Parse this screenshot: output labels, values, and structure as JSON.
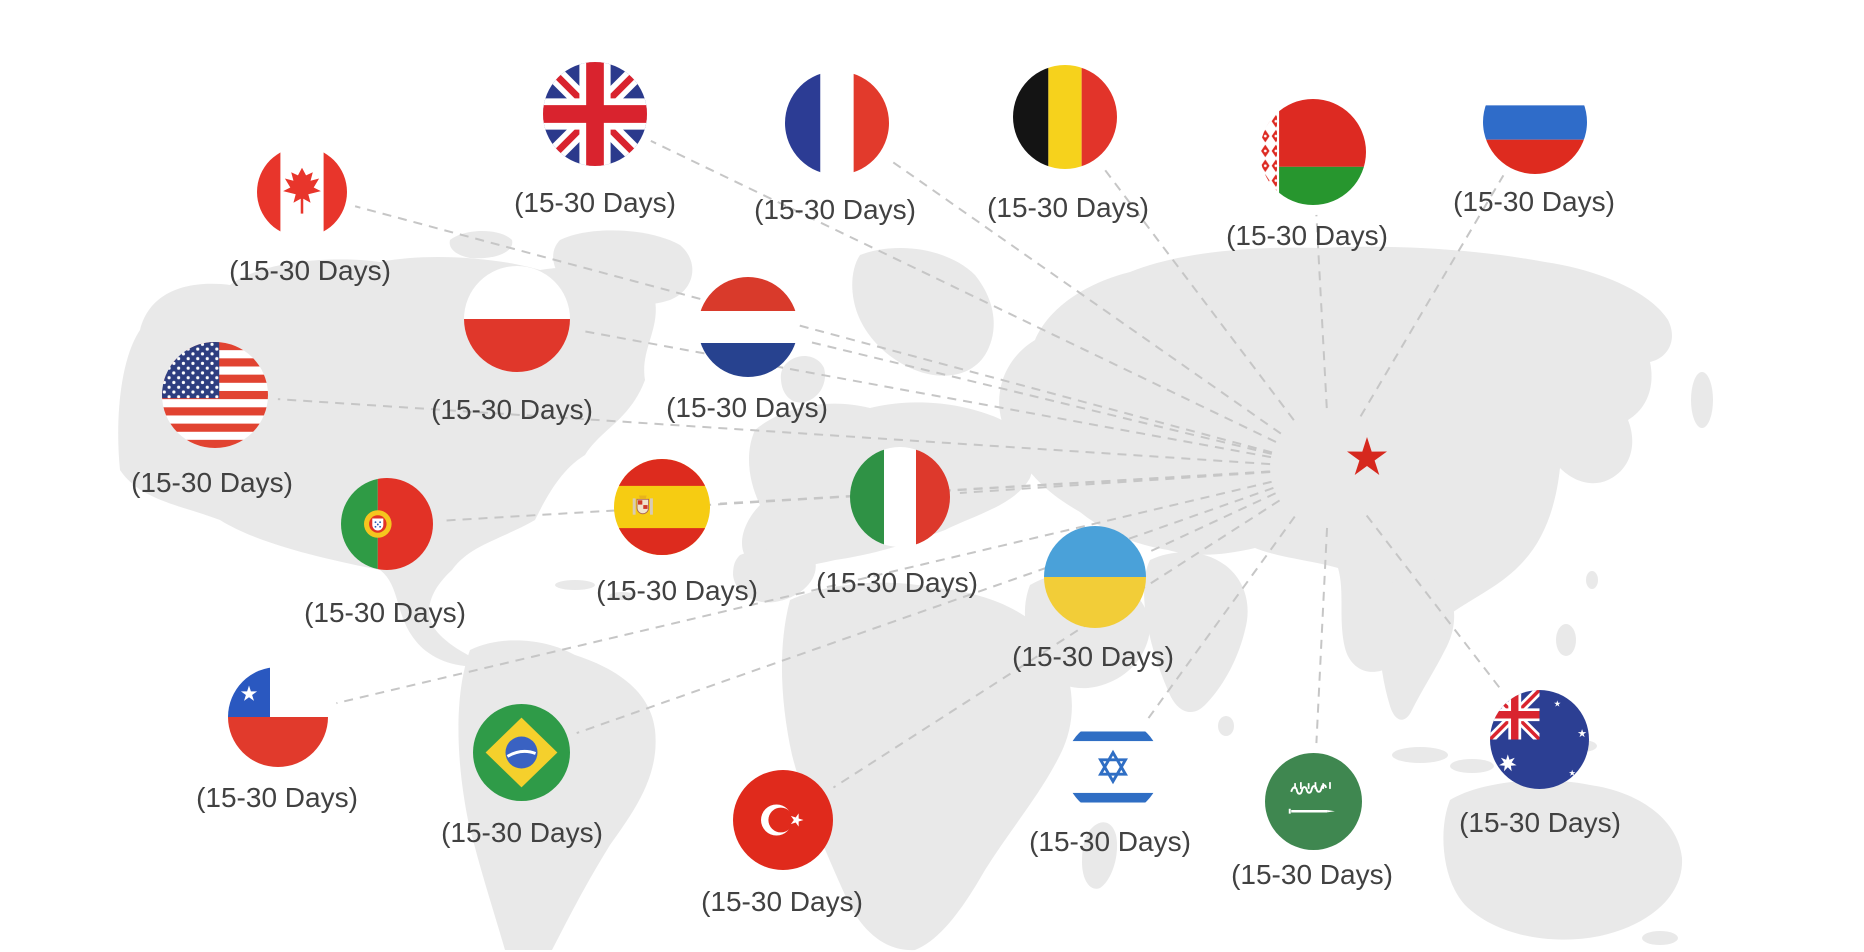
{
  "graphic": {
    "type": "global-shipping-destinations-map",
    "origin_marker": "red-star-on-china",
    "shipping_time": "(15-30 Days)"
  },
  "colors": {
    "star_red": "#d6281e",
    "map_land": "#e9e9e9",
    "dashed_line": "#c6c6c6",
    "label_text": "#414141"
  },
  "countries": [
    {
      "name": "Canada",
      "label": "(15-30 Days)"
    },
    {
      "name": "United Kingdom",
      "label": "(15-30 Days)"
    },
    {
      "name": "France",
      "label": "(15-30 Days)"
    },
    {
      "name": "Belgium",
      "label": "(15-30 Days)"
    },
    {
      "name": "Belarus",
      "label": "(15-30 Days)"
    },
    {
      "name": "Russia",
      "label": "(15-30 Days)"
    },
    {
      "name": "Poland",
      "label": "(15-30 Days)"
    },
    {
      "name": "Netherlands",
      "label": "(15-30 Days)"
    },
    {
      "name": "United States",
      "label": "(15-30 Days)"
    },
    {
      "name": "Portugal",
      "label": "(15-30 Days)"
    },
    {
      "name": "Spain",
      "label": "(15-30 Days)"
    },
    {
      "name": "Italy",
      "label": "(15-30 Days)"
    },
    {
      "name": "Ukraine",
      "label": "(15-30 Days)"
    },
    {
      "name": "Chile",
      "label": "(15-30 Days)"
    },
    {
      "name": "Brazil",
      "label": "(15-30 Days)"
    },
    {
      "name": "Turkey",
      "label": "(15-30 Days)"
    },
    {
      "name": "Israel",
      "label": "(15-30 Days)"
    },
    {
      "name": "Saudi Arabia",
      "label": "(15-30 Days)"
    },
    {
      "name": "Australia",
      "label": "(15-30 Days)"
    }
  ]
}
